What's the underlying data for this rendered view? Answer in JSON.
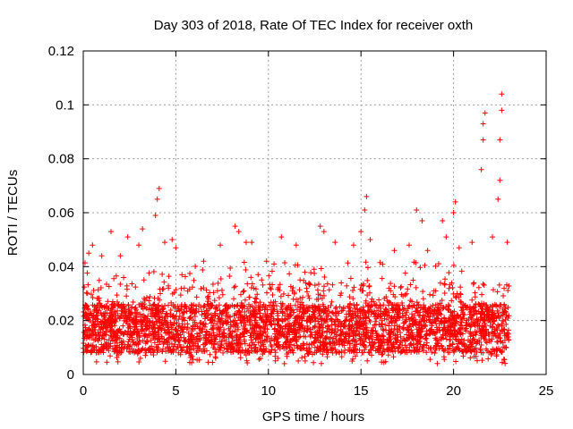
{
  "chart_data": {
    "type": "scatter",
    "title": "Day 303 of 2018, Rate Of TEC Index for receiver oxth",
    "xlabel": "GPS time / hours",
    "ylabel": "ROTI / TECUs",
    "xlim": [
      0,
      25
    ],
    "ylim": [
      0,
      0.12
    ],
    "x_ticks": [
      0,
      5,
      10,
      15,
      20,
      25
    ],
    "y_ticks": [
      0,
      0.02,
      0.04,
      0.06,
      0.08,
      0.1,
      0.12
    ],
    "x_tick_labels": [
      "0",
      "5",
      "10",
      "15",
      "20",
      "25"
    ],
    "y_tick_labels": [
      "0",
      "0.02",
      "0.04",
      "0.06",
      "0.08",
      "0.1",
      "0.12"
    ],
    "grid": true,
    "marker": "+",
    "color": "#ff0000",
    "series": [
      {
        "name": "ROTI",
        "x_range": [
          0,
          23
        ],
        "points": [
          [
            0.3,
            0.045
          ],
          [
            0.5,
            0.048
          ],
          [
            1.0,
            0.044
          ],
          [
            1.5,
            0.053
          ],
          [
            2.0,
            0.044
          ],
          [
            2.4,
            0.051
          ],
          [
            3.0,
            0.048
          ],
          [
            3.2,
            0.054
          ],
          [
            3.9,
            0.059
          ],
          [
            4.0,
            0.065
          ],
          [
            4.1,
            0.069
          ],
          [
            4.4,
            0.049
          ],
          [
            4.8,
            0.05
          ],
          [
            5.0,
            0.047
          ],
          [
            6.5,
            0.042
          ],
          [
            7.4,
            0.048
          ],
          [
            8.2,
            0.055
          ],
          [
            8.4,
            0.053
          ],
          [
            8.8,
            0.049
          ],
          [
            9.1,
            0.049
          ],
          [
            9.9,
            0.042
          ],
          [
            10.7,
            0.051
          ],
          [
            11.5,
            0.048
          ],
          [
            12.8,
            0.055
          ],
          [
            13.0,
            0.053
          ],
          [
            13.6,
            0.049
          ],
          [
            14.6,
            0.048
          ],
          [
            15.0,
            0.053
          ],
          [
            15.2,
            0.061
          ],
          [
            15.3,
            0.066
          ],
          [
            15.5,
            0.05
          ],
          [
            16.8,
            0.046
          ],
          [
            17.6,
            0.048
          ],
          [
            18.0,
            0.061
          ],
          [
            18.3,
            0.057
          ],
          [
            18.6,
            0.046
          ],
          [
            19.4,
            0.057
          ],
          [
            19.6,
            0.051
          ],
          [
            20.0,
            0.06
          ],
          [
            20.1,
            0.064
          ],
          [
            20.3,
            0.047
          ],
          [
            21.0,
            0.049
          ],
          [
            21.5,
            0.076
          ],
          [
            21.6,
            0.087
          ],
          [
            21.6,
            0.093
          ],
          [
            21.7,
            0.097
          ],
          [
            22.1,
            0.051
          ],
          [
            22.4,
            0.065
          ],
          [
            22.5,
            0.072
          ],
          [
            22.5,
            0.087
          ],
          [
            22.6,
            0.098
          ],
          [
            22.6,
            0.104
          ],
          [
            22.9,
            0.049
          ]
        ]
      }
    ]
  }
}
